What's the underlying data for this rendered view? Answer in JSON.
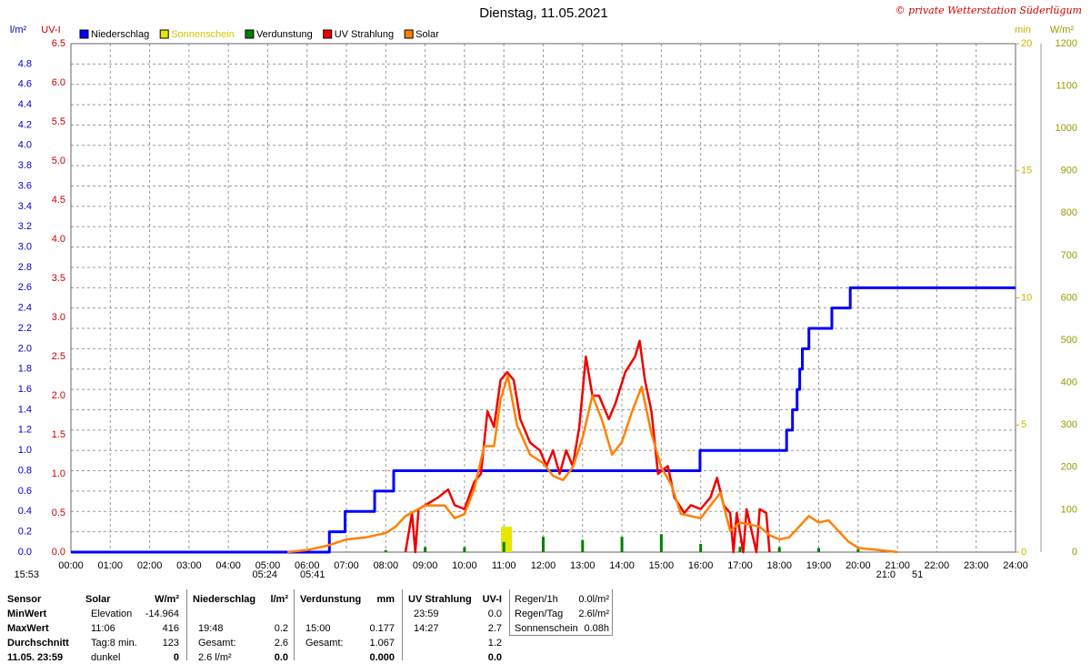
{
  "chart_data": {
    "type": "line",
    "title": "Dienstag, 11.05.2021",
    "credit": "© private Wetterstation Süderlügum",
    "xlim": [
      0,
      24
    ],
    "xticks": [
      {
        "value": 0,
        "label": "00:00"
      },
      {
        "value": 1,
        "label": "01:00"
      },
      {
        "value": 2,
        "label": "02:00"
      },
      {
        "value": 3,
        "label": "03:00"
      },
      {
        "value": 4,
        "label": "04:00"
      },
      {
        "value": 5,
        "label": "05:00"
      },
      {
        "value": 6,
        "label": "06:00"
      },
      {
        "value": 7,
        "label": "07:00"
      },
      {
        "value": 8,
        "label": "08:00"
      },
      {
        "value": 9,
        "label": "09:00"
      },
      {
        "value": 10,
        "label": "10:00"
      },
      {
        "value": 11,
        "label": "11:00"
      },
      {
        "value": 12,
        "label": "12:00"
      },
      {
        "value": 13,
        "label": "13:00"
      },
      {
        "value": 14,
        "label": "14:00"
      },
      {
        "value": 15,
        "label": "15:00"
      },
      {
        "value": 16,
        "label": "16:00"
      },
      {
        "value": 17,
        "label": "17:00"
      },
      {
        "value": 18,
        "label": "18:00"
      },
      {
        "value": 19,
        "label": "19:00"
      },
      {
        "value": 20,
        "label": "20:00"
      },
      {
        "value": 21,
        "label": "21:00"
      },
      {
        "value": 22,
        "label": "22:00"
      },
      {
        "value": 23,
        "label": "23:00"
      },
      {
        "value": 24,
        "label": "24:00"
      }
    ],
    "grid": true,
    "axes": [
      {
        "title": "l/m²",
        "color": "#0000cc",
        "side": "left",
        "lim": [
          0,
          5
        ],
        "ticks": [
          {
            "value": 0,
            "label": "0.0"
          },
          0.2,
          0.4,
          0.6,
          0.8,
          {
            "value": 1,
            "label": "1.0"
          },
          1.2,
          1.4,
          1.6,
          1.8,
          {
            "value": 2,
            "label": "2.0"
          },
          2.2,
          2.4,
          2.6,
          2.8,
          {
            "value": 3,
            "label": "3.0"
          },
          3.2,
          3.4,
          3.6,
          3.8,
          {
            "value": 4,
            "label": "4.0"
          },
          4.2,
          4.4,
          4.6,
          4.8
        ]
      },
      {
        "title": "UV-I",
        "color": "#cc0000",
        "side": "left",
        "lim": [
          0,
          6.5
        ],
        "ticks": [
          {
            "value": 0,
            "label": "0.0"
          },
          0.5,
          {
            "value": 1,
            "label": "1.0"
          },
          1.5,
          {
            "value": 2,
            "label": "2.0"
          },
          2.5,
          {
            "value": 3,
            "label": "3.0"
          },
          3.5,
          {
            "value": 4,
            "label": "4.0"
          },
          4.5,
          {
            "value": 5,
            "label": "5.0"
          },
          5.5,
          {
            "value": 6,
            "label": "6.0"
          },
          6.5
        ]
      },
      {
        "title": "min",
        "color": "#c8b400",
        "side": "right",
        "lim": [
          0,
          20
        ],
        "ticks": [
          0,
          5,
          10,
          15,
          20
        ]
      },
      {
        "title": "W/m²",
        "color": "#999900",
        "side": "right",
        "lim": [
          0,
          1200
        ],
        "ticks": [
          0,
          100,
          200,
          300,
          400,
          500,
          600,
          700,
          800,
          900,
          1000,
          1100,
          1200
        ]
      }
    ],
    "series": [
      {
        "name": "Niederschlag",
        "color": "#0000ff",
        "axis": 0,
        "style": "step",
        "x": [
          "00:00",
          "06:34",
          "06:58",
          "07:43",
          "08:12",
          "15:59",
          "18:11",
          "18:20",
          "18:27",
          "18:31",
          "18:35",
          "18:45",
          "19:20",
          "19:48",
          "24:00"
        ],
        "values": [
          0,
          0.2,
          0.4,
          0.6,
          0.8,
          1.0,
          1.2,
          1.4,
          1.6,
          1.8,
          2.0,
          2.2,
          2.4,
          2.6,
          2.6
        ]
      },
      {
        "name": "Sonnenschein",
        "color": "#e6e600",
        "axis": 2,
        "style": "bar",
        "x": [
          "11:04"
        ],
        "values": [
          1
        ]
      },
      {
        "name": "Verdunstung",
        "color": "#008000",
        "axis": 0,
        "style": "spike",
        "x": [
          "08:00",
          "09:00",
          "10:00",
          "11:00",
          "12:00",
          "13:00",
          "14:00",
          "15:00",
          "16:00",
          "17:00",
          "18:00",
          "19:00",
          "20:00"
        ],
        "values": [
          0.02,
          0.05,
          0.05,
          0.1,
          0.15,
          0.12,
          0.15,
          0.177,
          0.08,
          0.05,
          0.05,
          0.04,
          0.03
        ]
      },
      {
        "name": "UV Strahlung",
        "color": "#ee0000",
        "axis": 1,
        "style": "line",
        "x": [
          "08:30",
          "08:40",
          "08:45",
          "08:50",
          "09:00",
          "09:20",
          "09:35",
          "09:45",
          "10:00",
          "10:15",
          "10:25",
          "10:35",
          "10:45",
          "10:55",
          "11:05",
          "11:15",
          "11:25",
          "11:40",
          "11:55",
          "12:05",
          "12:15",
          "12:25",
          "12:35",
          "12:45",
          "12:55",
          "13:05",
          "13:15",
          "13:25",
          "13:40",
          "13:50",
          "14:05",
          "14:20",
          "14:27",
          "14:35",
          "14:45",
          "14:55",
          "15:10",
          "15:20",
          "15:35",
          "15:45",
          "16:00",
          "16:15",
          "16:25",
          "16:35",
          "16:45",
          "16:50",
          "16:55",
          "17:05",
          "17:10",
          "17:25",
          "17:30",
          "17:40",
          "17:45"
        ],
        "values": [
          0,
          0.5,
          0,
          0.55,
          0.6,
          0.7,
          0.8,
          0.6,
          0.55,
          0.9,
          1.0,
          1.8,
          1.6,
          2.2,
          2.3,
          2.2,
          1.7,
          1.4,
          1.3,
          1.1,
          1.3,
          1.0,
          1.3,
          1.1,
          1.6,
          2.5,
          2.0,
          2.0,
          1.7,
          1.9,
          2.3,
          2.5,
          2.7,
          2.2,
          1.8,
          1.0,
          1.1,
          0.7,
          0.5,
          0.6,
          0.55,
          0.7,
          0.95,
          0.6,
          0.5,
          0,
          0.5,
          0,
          0.55,
          0,
          0.55,
          0.5,
          0
        ]
      },
      {
        "name": "Solar",
        "color": "#ff8000",
        "axis": 3,
        "style": "line",
        "x": [
          "05:30",
          "06:00",
          "06:30",
          "07:00",
          "07:30",
          "08:00",
          "08:15",
          "08:30",
          "09:00",
          "09:30",
          "09:45",
          "10:00",
          "10:15",
          "10:30",
          "10:45",
          "10:55",
          "11:06",
          "11:20",
          "11:40",
          "12:00",
          "12:15",
          "12:30",
          "12:45",
          "13:00",
          "13:15",
          "13:30",
          "13:45",
          "14:00",
          "14:15",
          "14:30",
          "14:45",
          "15:00",
          "15:15",
          "15:30",
          "16:00",
          "16:30",
          "16:45",
          "17:00",
          "17:30",
          "17:45",
          "18:00",
          "18:15",
          "18:30",
          "18:45",
          "19:00",
          "19:15",
          "19:30",
          "19:45",
          "20:00",
          "20:30",
          "21:00"
        ],
        "values": [
          0,
          5,
          15,
          30,
          35,
          45,
          60,
          85,
          110,
          110,
          80,
          90,
          150,
          250,
          250,
          360,
          416,
          300,
          230,
          210,
          180,
          170,
          200,
          270,
          370,
          310,
          230,
          260,
          330,
          390,
          280,
          200,
          160,
          90,
          80,
          140,
          50,
          70,
          60,
          40,
          30,
          35,
          60,
          85,
          70,
          75,
          50,
          25,
          10,
          5,
          0
        ]
      }
    ],
    "annotations": [
      "15:53",
      "05:24",
      "05:41",
      "21:0",
      "51"
    ]
  },
  "table": {
    "sensor": [
      "Sensor",
      "MinWert",
      "MaxWert",
      "Durchschnitt",
      "11.05. 23:59"
    ],
    "sections": [
      {
        "header": [
          "Solar",
          "W/m²"
        ],
        "rows": [
          [
            "Elevation",
            "-14.964"
          ],
          [
            "11:06",
            "416"
          ],
          [
            "Tag:8 min.",
            "123"
          ],
          [
            "dunkel",
            "0"
          ]
        ]
      },
      {
        "header": [
          "Niederschlag",
          "l/m²"
        ],
        "rows": [
          [
            null,
            null
          ],
          [
            "19:48",
            "0.2"
          ],
          [
            "Gesamt:",
            "2.6"
          ],
          [
            "2.6 l/m²",
            "0.0"
          ]
        ]
      },
      {
        "header": [
          "Verdunstung",
          "mm"
        ],
        "rows": [
          [
            null,
            null
          ],
          [
            "15:00",
            "0.177"
          ],
          [
            "Gesamt:",
            "1.067"
          ],
          [
            null,
            "0.000"
          ]
        ]
      },
      {
        "header": [
          "UV Strahlung",
          "UV-I"
        ],
        "rows": [
          [
            "23:59",
            "0.0"
          ],
          [
            "14:27",
            "2.7"
          ],
          [
            null,
            "1.2"
          ],
          [
            null,
            "0.0"
          ]
        ]
      }
    ],
    "summary": [
      [
        "Regen/1h",
        "0.0l/m²"
      ],
      [
        "Regen/Tag",
        "2.6l/m²"
      ],
      [
        "Sonnenschein",
        "0.08h"
      ]
    ]
  }
}
